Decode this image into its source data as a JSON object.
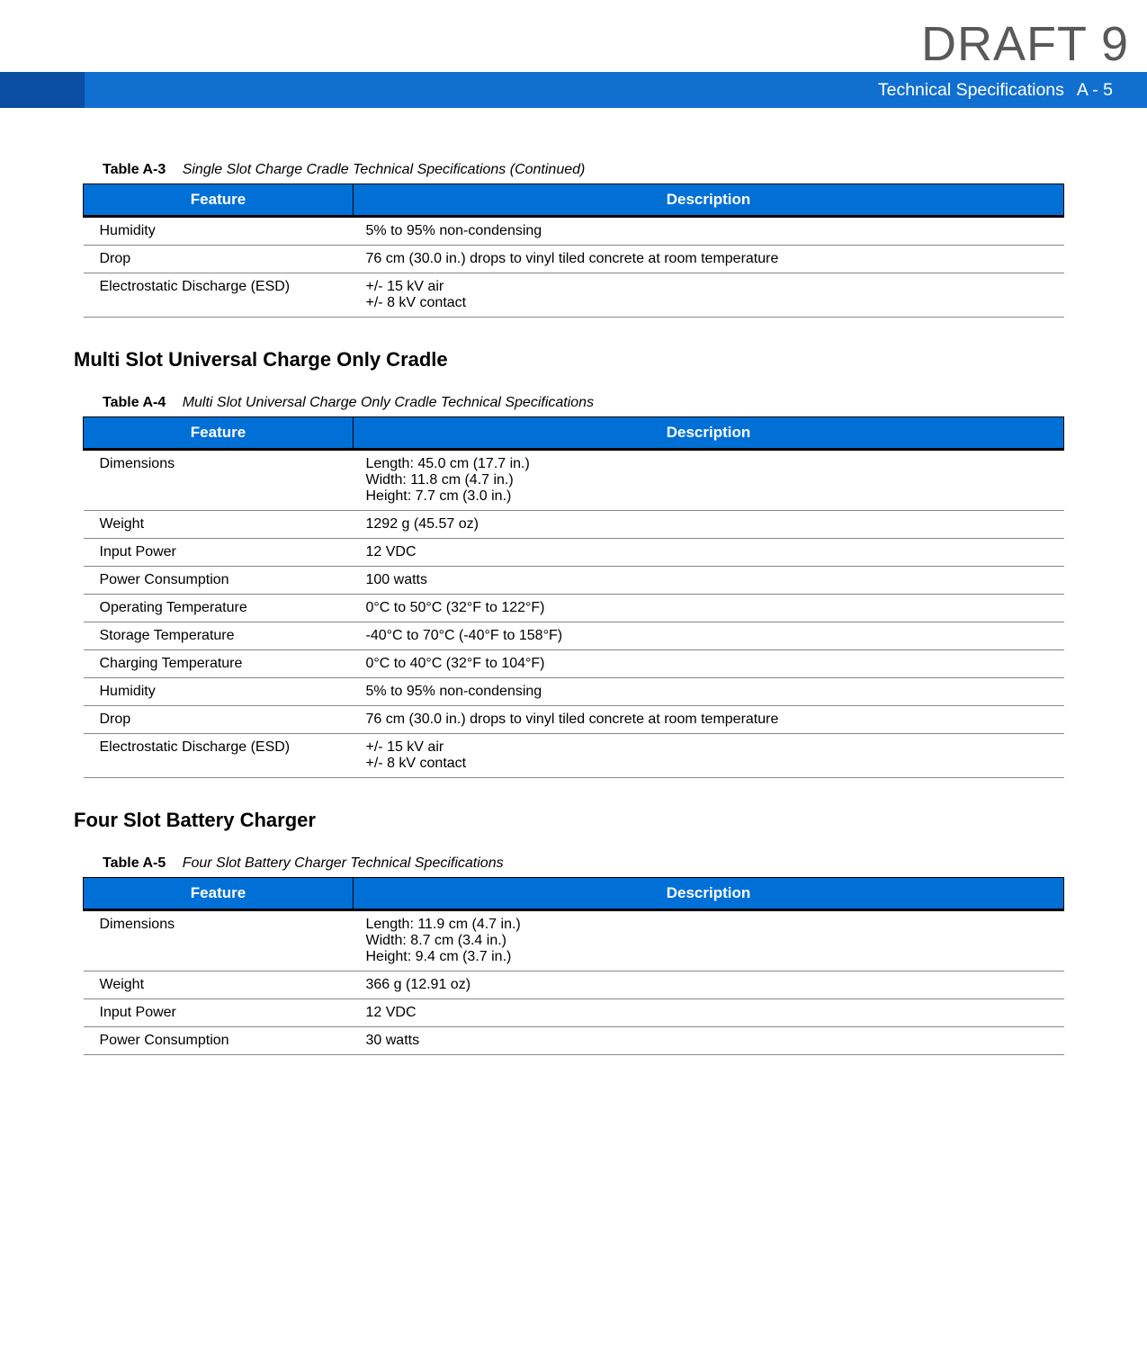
{
  "watermark": "DRAFT 9",
  "header": {
    "title": "Technical Specifications",
    "page": "A - 5"
  },
  "colors": {
    "header_left": "#0c4ea2",
    "header_right": "#1170cf",
    "table_header_bg": "#0070d6",
    "table_header_fg": "#ffffff",
    "row_border": "#888888"
  },
  "tables": {
    "a3": {
      "label": "Table A-3",
      "title": "Single Slot Charge Cradle Technical Specifications (Continued)",
      "col_feature": "Feature",
      "col_desc": "Description",
      "rows": [
        {
          "feature": "Humidity",
          "desc": [
            "5% to 95% non-condensing"
          ]
        },
        {
          "feature": "Drop",
          "desc": [
            "76 cm (30.0 in.) drops to vinyl tiled concrete at room temperature"
          ]
        },
        {
          "feature": "Electrostatic Discharge (ESD)",
          "desc": [
            "+/- 15 kV air",
            "+/- 8 kV contact"
          ]
        }
      ]
    },
    "a4": {
      "section_heading": "Multi Slot Universal Charge Only Cradle",
      "label": "Table A-4",
      "title": "Multi Slot Universal Charge Only Cradle Technical Specifications",
      "col_feature": "Feature",
      "col_desc": "Description",
      "rows": [
        {
          "feature": "Dimensions",
          "desc": [
            "Length: 45.0 cm (17.7 in.)",
            "Width: 11.8 cm (4.7 in.)",
            "Height: 7.7 cm (3.0 in.)"
          ]
        },
        {
          "feature": "Weight",
          "desc": [
            "1292 g (45.57 oz)"
          ]
        },
        {
          "feature": "Input Power",
          "desc": [
            "12 VDC"
          ]
        },
        {
          "feature": "Power Consumption",
          "desc": [
            "100 watts"
          ]
        },
        {
          "feature": "Operating Temperature",
          "desc": [
            "0°C to 50°C (32°F to 122°F)"
          ]
        },
        {
          "feature": "Storage Temperature",
          "desc": [
            "-40°C to 70°C (-40°F to 158°F)"
          ]
        },
        {
          "feature": "Charging Temperature",
          "desc": [
            "0°C to 40°C (32°F to 104°F)"
          ]
        },
        {
          "feature": "Humidity",
          "desc": [
            "5% to 95% non-condensing"
          ]
        },
        {
          "feature": "Drop",
          "desc": [
            "76 cm (30.0 in.) drops to vinyl tiled concrete at room temperature"
          ]
        },
        {
          "feature": "Electrostatic Discharge (ESD)",
          "desc": [
            "+/- 15 kV air",
            "+/- 8 kV contact"
          ]
        }
      ]
    },
    "a5": {
      "section_heading": "Four Slot Battery Charger",
      "label": "Table A-5",
      "title": "Four Slot Battery Charger Technical Specifications",
      "col_feature": "Feature",
      "col_desc": "Description",
      "rows": [
        {
          "feature": "Dimensions",
          "desc": [
            "Length: 11.9 cm (4.7 in.)",
            "Width: 8.7 cm (3.4 in.)",
            "Height: 9.4 cm (3.7 in.)"
          ]
        },
        {
          "feature": "Weight",
          "desc": [
            "366 g (12.91 oz)"
          ]
        },
        {
          "feature": "Input Power",
          "desc": [
            "12 VDC"
          ]
        },
        {
          "feature": "Power Consumption",
          "desc": [
            "30 watts"
          ]
        }
      ]
    }
  }
}
